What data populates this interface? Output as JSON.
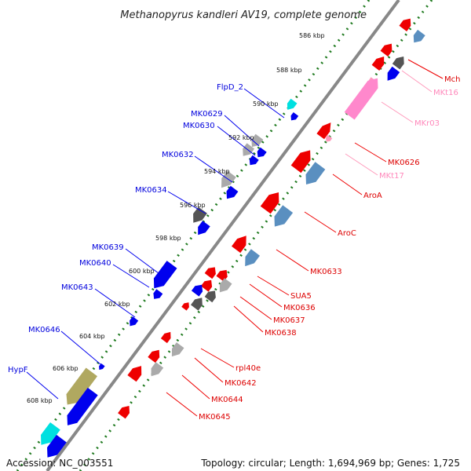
{
  "title": "Methanopyrus kandleri AV19, complete genome",
  "accession_label": "Accession: NC_003551",
  "topology_label": "Topology: circular; Length: 1,694,969 bp; Genes: 1,725",
  "colors": {
    "backbone": "#888888",
    "ruler_dots": "#1f7a1f",
    "cds_forward": "#0000ee",
    "cds_reverse": "#ee0000",
    "rrna": "#ff88cc",
    "trna": "#ff99bb",
    "pseudo": "#aaaaaa",
    "dark": "#555555",
    "steel": "#5a8fc0",
    "cyan": "#00e0e0",
    "olive": "#b0a860"
  },
  "scale_ticks": [
    "586 kbp",
    "588 kbp",
    "590 kbp",
    "592 kbp",
    "594 kbp",
    "596 kbp",
    "598 kbp",
    "600 kbp",
    "602 kbp",
    "604 kbp",
    "606 kbp",
    "608 kbp"
  ],
  "gene_labels_forward": [
    "FlpD_2",
    "MK0629",
    "MK0630",
    "MK0632",
    "MK0634",
    "MK0639",
    "MK0640",
    "MK0643",
    "MK0646",
    "HypF"
  ],
  "gene_labels_reverse": [
    "Mch",
    "MKt16",
    "MKr03",
    "MK0626",
    "MKt17",
    "AroA",
    "AroC",
    "MK0633",
    "SUA5",
    "MK0636",
    "MK0637",
    "MK0638",
    "rpl40e",
    "MK0642",
    "MK0644",
    "MK0645"
  ]
}
